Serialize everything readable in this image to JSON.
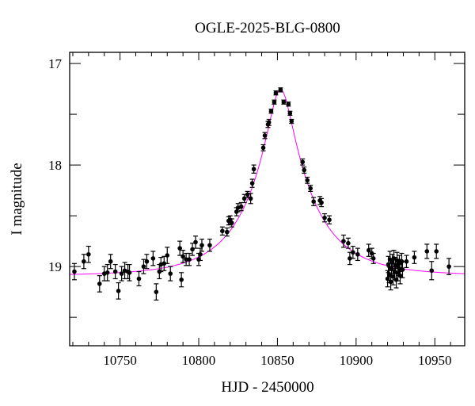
{
  "chart_data": {
    "type": "scatter",
    "title": "OGLE-2025-BLG-0800",
    "xlabel": "HJD - 2450000",
    "ylabel": "I magnitude",
    "xlim": [
      10718,
      10969
    ],
    "ylim": [
      19.78,
      16.89
    ],
    "y_inverted": true,
    "grid": false,
    "x_ticks": [
      "10750",
      "10800",
      "10850",
      "10900",
      "10950"
    ],
    "x_tick_values": [
      10750,
      10800,
      10850,
      10900,
      10950
    ],
    "y_ticks": [
      "17",
      "18",
      "19"
    ],
    "y_tick_values": [
      17,
      18,
      19
    ],
    "colors": {
      "points": "#000000",
      "errorbars": "#000000",
      "model": "#ff00ff"
    },
    "series": [
      {
        "kind": "points-with-errorbars",
        "points": [
          [
            10721,
            19.05,
            0.08
          ],
          [
            10727,
            18.95,
            0.07
          ],
          [
            10730,
            18.88,
            0.08
          ],
          [
            10737,
            19.17,
            0.08
          ],
          [
            10740,
            19.07,
            0.07
          ],
          [
            10742,
            19.06,
            0.08
          ],
          [
            10744,
            18.95,
            0.07
          ],
          [
            10747,
            19.05,
            0.07
          ],
          [
            10749,
            19.24,
            0.08
          ],
          [
            10751,
            19.07,
            0.07
          ],
          [
            10753,
            19.04,
            0.08
          ],
          [
            10755,
            19.05,
            0.07
          ],
          [
            10756,
            19.06,
            0.08
          ],
          [
            10762,
            19.12,
            0.07
          ],
          [
            10765,
            19.0,
            0.07
          ],
          [
            10767,
            18.95,
            0.07
          ],
          [
            10771,
            18.92,
            0.07
          ],
          [
            10773,
            19.25,
            0.08
          ],
          [
            10775,
            19.05,
            0.07
          ],
          [
            10776,
            18.98,
            0.07
          ],
          [
            10778,
            18.97,
            0.07
          ],
          [
            10780,
            18.89,
            0.08
          ],
          [
            10782,
            19.07,
            0.07
          ],
          [
            10788,
            18.82,
            0.07
          ],
          [
            10789,
            19.13,
            0.07
          ],
          [
            10790,
            18.9,
            0.06
          ],
          [
            10792,
            18.93,
            0.06
          ],
          [
            10794,
            18.93,
            0.06
          ],
          [
            10796,
            18.83,
            0.06
          ],
          [
            10798,
            18.76,
            0.06
          ],
          [
            10800,
            18.93,
            0.06
          ],
          [
            10801,
            18.88,
            0.06
          ],
          [
            10802,
            18.79,
            0.06
          ],
          [
            10807,
            18.79,
            0.06
          ],
          [
            10815,
            18.65,
            0.04
          ],
          [
            10818,
            18.66,
            0.04
          ],
          [
            10819,
            18.55,
            0.04
          ],
          [
            10820,
            18.54,
            0.04
          ],
          [
            10821,
            18.57,
            0.04
          ],
          [
            10824,
            18.46,
            0.04
          ],
          [
            10825,
            18.42,
            0.04
          ],
          [
            10827,
            18.41,
            0.04
          ],
          [
            10829,
            18.33,
            0.04
          ],
          [
            10831,
            18.29,
            0.03
          ],
          [
            10833,
            18.33,
            0.05
          ],
          [
            10834,
            18.18,
            0.04
          ],
          [
            10835,
            18.04,
            0.04
          ],
          [
            10841,
            17.83,
            0.03
          ],
          [
            10842,
            17.71,
            0.03
          ],
          [
            10844,
            17.6,
            0.03
          ],
          [
            10844.6,
            17.58,
            0.03
          ],
          [
            10846,
            17.47,
            0.02
          ],
          [
            10848,
            17.38,
            0.02
          ],
          [
            10849,
            17.29,
            0.02
          ],
          [
            10852,
            17.26,
            0.02
          ],
          [
            10854,
            17.38,
            0.02
          ],
          [
            10857,
            17.4,
            0.02
          ],
          [
            10858,
            17.49,
            0.02
          ],
          [
            10859,
            17.57,
            0.02
          ],
          [
            10866,
            17.97,
            0.03
          ],
          [
            10867,
            18.05,
            0.03
          ],
          [
            10869,
            18.15,
            0.03
          ],
          [
            10871,
            18.23,
            0.03
          ],
          [
            10873,
            18.36,
            0.04
          ],
          [
            10877,
            18.35,
            0.04
          ],
          [
            10878,
            18.37,
            0.04
          ],
          [
            10880,
            18.52,
            0.04
          ],
          [
            10883,
            18.54,
            0.04
          ],
          [
            10892,
            18.75,
            0.06
          ],
          [
            10895,
            18.77,
            0.05
          ],
          [
            10896,
            18.92,
            0.06
          ],
          [
            10898,
            18.86,
            0.06
          ],
          [
            10901,
            18.88,
            0.06
          ],
          [
            10908,
            18.84,
            0.06
          ],
          [
            10910,
            18.87,
            0.05
          ],
          [
            10911,
            18.92,
            0.05
          ],
          [
            10920,
            19.12,
            0.08
          ],
          [
            10920.5,
            18.98,
            0.08
          ],
          [
            10921,
            19.08,
            0.08
          ],
          [
            10921.5,
            18.93,
            0.08
          ],
          [
            10922,
            19.15,
            0.08
          ],
          [
            10922.5,
            19.02,
            0.08
          ],
          [
            10923,
            18.96,
            0.08
          ],
          [
            10923.5,
            19.1,
            0.08
          ],
          [
            10924,
            18.92,
            0.08
          ],
          [
            10924.5,
            19.05,
            0.08
          ],
          [
            10925,
            18.99,
            0.08
          ],
          [
            10925.5,
            19.13,
            0.08
          ],
          [
            10926,
            18.94,
            0.08
          ],
          [
            10926.5,
            19.06,
            0.08
          ],
          [
            10927,
            19.01,
            0.08
          ],
          [
            10927.5,
            18.97,
            0.08
          ],
          [
            10928,
            19.09,
            0.08
          ],
          [
            10929,
            18.95,
            0.08
          ],
          [
            10929.5,
            19.03,
            0.08
          ],
          [
            10932,
            18.95,
            0.06
          ],
          [
            10937,
            18.91,
            0.06
          ],
          [
            10945,
            18.85,
            0.07
          ],
          [
            10948,
            19.04,
            0.09
          ],
          [
            10951,
            18.85,
            0.07
          ],
          [
            10959,
            19.0,
            0.08
          ]
        ]
      },
      {
        "kind": "model-curve",
        "model": "PSPL",
        "t0": 10852,
        "tE": 40,
        "u0": 0.187,
        "baseline_mag": 19.09
      }
    ]
  }
}
